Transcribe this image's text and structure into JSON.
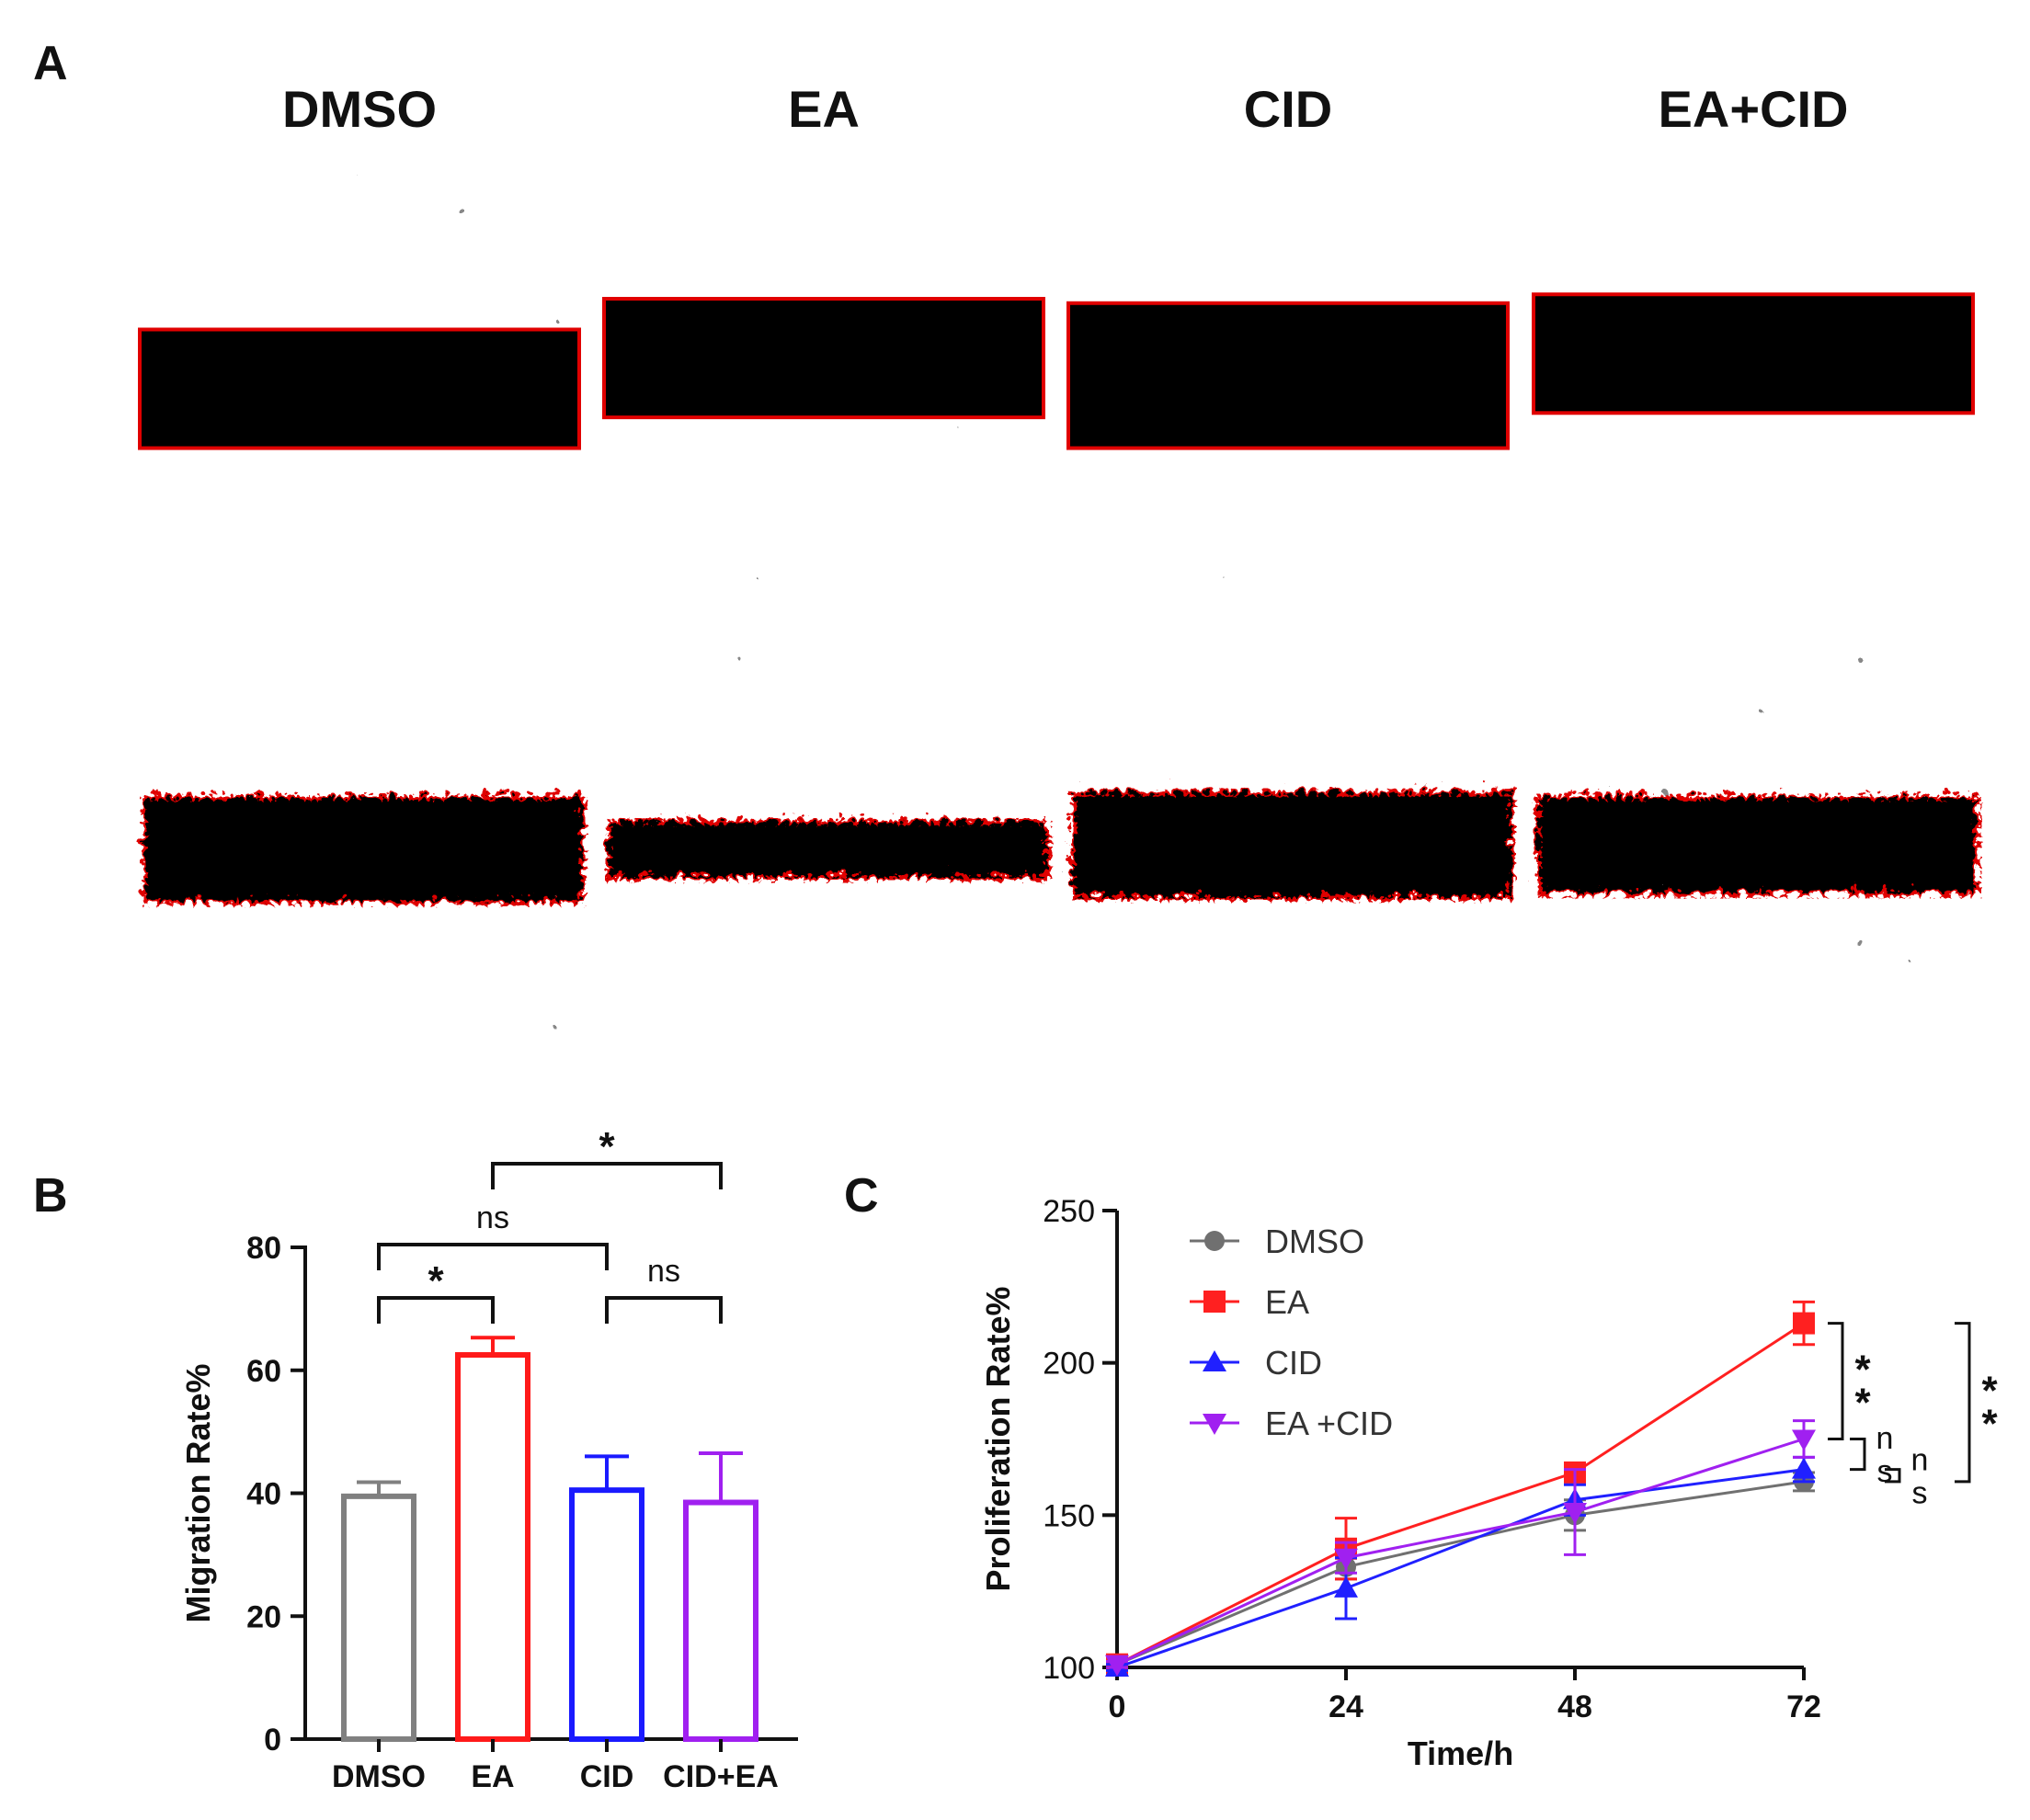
{
  "panels": {
    "a": {
      "letter": "A",
      "conditions": [
        "DMSO",
        "EA",
        "CID",
        "EA+CID"
      ],
      "gap_color": "#000000",
      "edge_color": "#e00000",
      "gap_fraction_row1": [
        0.27,
        0.27,
        0.33,
        0.27
      ],
      "gap_fraction_row2": [
        0.24,
        0.13,
        0.24,
        0.22
      ]
    },
    "b": {
      "letter": "B"
    },
    "c": {
      "letter": "C"
    }
  },
  "chart_data": [
    {
      "type": "bar",
      "panel": "B",
      "ylabel": "Migration Rate%",
      "xlabel": "",
      "ylim": [
        0,
        80
      ],
      "yticks": [
        "0",
        "20",
        "40",
        "60",
        "80"
      ],
      "categories": [
        "DMSO",
        "EA",
        "CID",
        "CID+EA"
      ],
      "values": [
        39.5,
        62.5,
        40.5,
        38.5
      ],
      "errors": [
        2.3,
        2.8,
        5.5,
        8.0
      ],
      "colors": [
        "#808080",
        "#ff1a1a",
        "#1a1aff",
        "#a020f0"
      ],
      "significance": [
        {
          "pair": [
            0,
            1
          ],
          "label": "*"
        },
        {
          "pair": [
            0,
            2
          ],
          "label": "ns"
        },
        {
          "pair": [
            2,
            3
          ],
          "label": "ns"
        },
        {
          "pair": [
            1,
            3
          ],
          "label": "*"
        }
      ]
    },
    {
      "type": "line",
      "panel": "C",
      "xlabel": "Time/h",
      "ylabel": "Proliferation Rate%",
      "x": [
        0,
        24,
        48,
        72
      ],
      "xticks": [
        "0",
        "24",
        "48",
        "72"
      ],
      "ylim": [
        100,
        250
      ],
      "yticks": [
        "100",
        "150",
        "200",
        "250"
      ],
      "series": [
        {
          "name": "DMSO",
          "color": "#707070",
          "marker": "circle",
          "values": [
            101,
            133,
            150,
            161
          ],
          "errors": [
            1,
            4,
            5,
            3
          ]
        },
        {
          "name": "EA",
          "color": "#ff2020",
          "marker": "square",
          "values": [
            101,
            139,
            164,
            213
          ],
          "errors": [
            1,
            10,
            2,
            7
          ]
        },
        {
          "name": "CID",
          "color": "#2020ff",
          "marker": "triangle-up",
          "values": [
            100,
            126,
            155,
            165
          ],
          "errors": [
            1,
            10,
            5,
            4
          ]
        },
        {
          "name": "EA +CID",
          "color": "#a020f0",
          "marker": "triangle-down",
          "values": [
            101,
            136,
            151,
            175
          ],
          "errors": [
            1,
            5,
            14,
            6
          ]
        }
      ],
      "brackets": [
        {
          "between": [
            "EA",
            "EA +CID"
          ],
          "label": [
            "*",
            "*"
          ]
        },
        {
          "between": [
            "EA +CID",
            "CID"
          ],
          "label": [
            "n",
            "s"
          ]
        },
        {
          "between": [
            "CID",
            "DMSO"
          ],
          "label": [
            "n",
            "s"
          ]
        },
        {
          "between": [
            "EA",
            "DMSO"
          ],
          "label": [
            "*",
            "*"
          ]
        }
      ]
    }
  ]
}
